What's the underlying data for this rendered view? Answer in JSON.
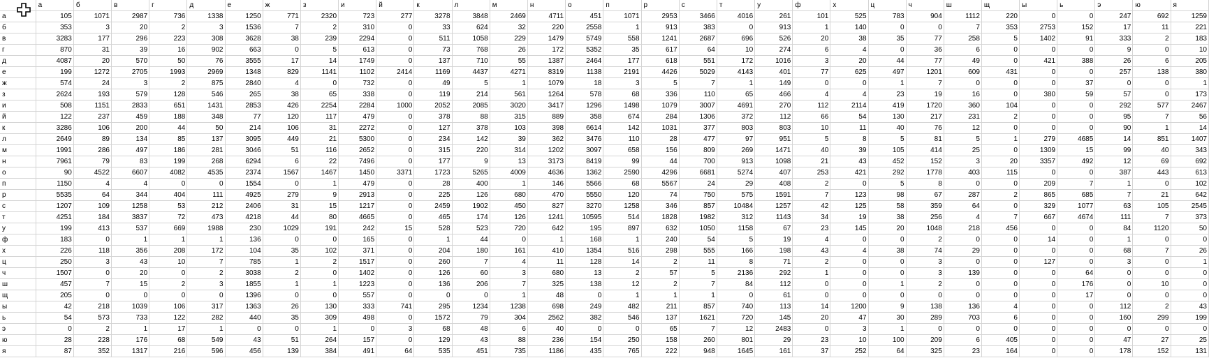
{
  "sheet": {
    "columns": [
      "а",
      "б",
      "в",
      "г",
      "д",
      "е",
      "ж",
      "з",
      "и",
      "й",
      "к",
      "л",
      "м",
      "н",
      "о",
      "п",
      "р",
      "с",
      "т",
      "у",
      "ф",
      "х",
      "ц",
      "ч",
      "ш",
      "щ",
      "ы",
      "ь",
      "э",
      "ю",
      "я"
    ],
    "rows": [
      {
        "label": "а",
        "values": [
          105,
          1071,
          2987,
          736,
          1338,
          1250,
          771,
          2320,
          723,
          277,
          3278,
          3848,
          2469,
          4711,
          451,
          1071,
          2953,
          3466,
          4016,
          261,
          101,
          525,
          783,
          904,
          1112,
          220,
          0,
          0,
          247,
          692,
          1259
        ]
      },
      {
        "label": "б",
        "values": [
          353,
          3,
          20,
          2,
          3,
          1536,
          7,
          2,
          310,
          0,
          33,
          624,
          32,
          220,
          2558,
          1,
          913,
          383,
          0,
          913,
          1,
          140,
          0,
          0,
          7,
          353,
          2753,
          152,
          17,
          11,
          221
        ]
      },
      {
        "label": "в",
        "values": [
          3283,
          177,
          296,
          223,
          308,
          3628,
          38,
          239,
          2294,
          0,
          511,
          1058,
          229,
          1479,
          5749,
          558,
          1241,
          2687,
          696,
          526,
          20,
          38,
          35,
          77,
          258,
          5,
          1402,
          91,
          333,
          2,
          183
        ]
      },
      {
        "label": "г",
        "values": [
          870,
          31,
          39,
          16,
          902,
          663,
          0,
          5,
          613,
          0,
          73,
          768,
          26,
          172,
          5352,
          35,
          617,
          64,
          10,
          274,
          6,
          4,
          0,
          36,
          6,
          0,
          0,
          0,
          9,
          0,
          10
        ]
      },
      {
        "label": "д",
        "values": [
          4087,
          20,
          570,
          50,
          76,
          3555,
          17,
          14,
          1749,
          0,
          137,
          710,
          55,
          1387,
          2464,
          177,
          618,
          551,
          172,
          1016,
          3,
          20,
          44,
          77,
          49,
          0,
          421,
          388,
          26,
          6,
          205
        ]
      },
      {
        "label": "е",
        "values": [
          199,
          1272,
          2705,
          1993,
          2969,
          1348,
          829,
          1141,
          1102,
          2414,
          1169,
          4437,
          4271,
          8319,
          1138,
          2191,
          4426,
          5029,
          4143,
          401,
          77,
          625,
          497,
          1201,
          609,
          431,
          0,
          0,
          257,
          138,
          380
        ]
      },
      {
        "label": "ж",
        "values": [
          574,
          24,
          3,
          2,
          875,
          2840,
          4,
          0,
          732,
          0,
          49,
          5,
          1,
          1079,
          18,
          3,
          5,
          7,
          1,
          149,
          0,
          0,
          1,
          7,
          0,
          0,
          0,
          37,
          0,
          0,
          1
        ]
      },
      {
        "label": "з",
        "values": [
          2624,
          193,
          579,
          128,
          546,
          265,
          38,
          65,
          338,
          0,
          119,
          214,
          561,
          1264,
          578,
          68,
          336,
          110,
          65,
          466,
          4,
          4,
          23,
          19,
          16,
          0,
          380,
          59,
          57,
          0,
          173
        ]
      },
      {
        "label": "и",
        "values": [
          508,
          1151,
          2833,
          651,
          1431,
          2853,
          426,
          2254,
          2284,
          1000,
          2052,
          2085,
          3020,
          3417,
          1296,
          1498,
          1079,
          3007,
          4691,
          270,
          112,
          2114,
          419,
          1720,
          360,
          104,
          0,
          0,
          292,
          577,
          2467
        ]
      },
      {
        "label": "й",
        "values": [
          122,
          237,
          459,
          188,
          348,
          77,
          120,
          117,
          479,
          0,
          378,
          88,
          315,
          889,
          358,
          674,
          284,
          1306,
          372,
          112,
          66,
          54,
          130,
          217,
          231,
          2,
          0,
          0,
          95,
          7,
          56
        ]
      },
      {
        "label": "к",
        "values": [
          3286,
          106,
          200,
          44,
          50,
          214,
          106,
          31,
          2272,
          0,
          127,
          378,
          103,
          398,
          6614,
          142,
          1031,
          377,
          803,
          803,
          10,
          11,
          40,
          76,
          12,
          0,
          0,
          0,
          90,
          1,
          14
        ]
      },
      {
        "label": "л",
        "values": [
          2649,
          89,
          134,
          85,
          137,
          3095,
          449,
          21,
          5300,
          0,
          234,
          142,
          39,
          362,
          3476,
          110,
          28,
          477,
          97,
          951,
          5,
          8,
          5,
          81,
          5,
          1,
          279,
          4685,
          14,
          851,
          1407
        ]
      },
      {
        "label": "м",
        "values": [
          1991,
          286,
          497,
          186,
          281,
          3046,
          51,
          116,
          2652,
          0,
          315,
          220,
          314,
          1202,
          3097,
          658,
          156,
          809,
          269,
          1471,
          40,
          39,
          105,
          414,
          25,
          0,
          1309,
          15,
          99,
          40,
          343
        ]
      },
      {
        "label": "н",
        "values": [
          7961,
          79,
          83,
          199,
          268,
          6294,
          6,
          22,
          7496,
          0,
          177,
          9,
          13,
          3173,
          8419,
          99,
          44,
          700,
          913,
          1098,
          21,
          43,
          452,
          152,
          3,
          20,
          3357,
          492,
          12,
          69,
          692
        ]
      },
      {
        "label": "о",
        "values": [
          90,
          4522,
          6607,
          4082,
          4535,
          2374,
          1567,
          1467,
          1450,
          3371,
          1723,
          5265,
          4009,
          4636,
          1362,
          2590,
          4296,
          6681,
          5274,
          407,
          253,
          421,
          292,
          1778,
          403,
          115,
          0,
          0,
          387,
          443,
          613
        ]
      },
      {
        "label": "п",
        "values": [
          1150,
          4,
          4,
          0,
          0,
          1554,
          0,
          1,
          479,
          0,
          28,
          400,
          1,
          146,
          5566,
          68,
          5567,
          24,
          29,
          408,
          2,
          0,
          5,
          8,
          0,
          0,
          209,
          7,
          1,
          0,
          102
        ]
      },
      {
        "label": "р",
        "values": [
          5535,
          64,
          344,
          404,
          111,
          4925,
          279,
          9,
          2913,
          0,
          225,
          126,
          680,
          470,
          5550,
          120,
          74,
          750,
          575,
          1591,
          7,
          123,
          98,
          67,
          287,
          2,
          865,
          685,
          7,
          21,
          642
        ]
      },
      {
        "label": "с",
        "values": [
          1207,
          109,
          1258,
          53,
          212,
          2406,
          31,
          15,
          1217,
          0,
          2459,
          1902,
          450,
          827,
          3270,
          1258,
          346,
          857,
          10484,
          1257,
          42,
          125,
          58,
          359,
          64,
          0,
          329,
          1077,
          63,
          105,
          2545
        ]
      },
      {
        "label": "т",
        "values": [
          4251,
          184,
          3837,
          72,
          473,
          4218,
          44,
          80,
          4665,
          0,
          465,
          174,
          126,
          1241,
          10595,
          514,
          1828,
          1982,
          312,
          1143,
          34,
          19,
          38,
          256,
          4,
          7,
          667,
          4674,
          111,
          7,
          373
        ]
      },
      {
        "label": "у",
        "values": [
          199,
          413,
          537,
          669,
          1988,
          230,
          1029,
          191,
          242,
          15,
          528,
          523,
          720,
          642,
          195,
          897,
          632,
          1050,
          1158,
          67,
          23,
          145,
          20,
          1048,
          218,
          456,
          0,
          0,
          84,
          1120,
          50
        ]
      },
      {
        "label": "ф",
        "values": [
          183,
          0,
          1,
          1,
          1,
          136,
          0,
          0,
          165,
          0,
          1,
          44,
          0,
          1,
          168,
          1,
          240,
          54,
          5,
          19,
          4,
          0,
          0,
          2,
          0,
          0,
          14,
          0,
          1,
          0,
          0
        ]
      },
      {
        "label": "х",
        "values": [
          226,
          118,
          356,
          208,
          172,
          104,
          35,
          102,
          371,
          0,
          204,
          180,
          161,
          410,
          1354,
          516,
          298,
          555,
          166,
          198,
          43,
          4,
          38,
          74,
          29,
          0,
          0,
          0,
          68,
          7,
          26
        ]
      },
      {
        "label": "ц",
        "values": [
          250,
          3,
          43,
          10,
          7,
          785,
          1,
          2,
          1517,
          0,
          260,
          7,
          4,
          11,
          128,
          14,
          2,
          11,
          8,
          71,
          2,
          0,
          0,
          3,
          0,
          0,
          127,
          0,
          3,
          0,
          1
        ]
      },
      {
        "label": "ч",
        "values": [
          1507,
          0,
          20,
          0,
          2,
          3038,
          2,
          0,
          1402,
          0,
          126,
          60,
          3,
          680,
          13,
          2,
          57,
          5,
          2136,
          292,
          1,
          0,
          0,
          3,
          139,
          0,
          0,
          64,
          0,
          0,
          0
        ]
      },
      {
        "label": "ш",
        "values": [
          457,
          7,
          15,
          2,
          3,
          1855,
          1,
          1,
          1223,
          0,
          136,
          206,
          7,
          325,
          138,
          12,
          2,
          7,
          84,
          112,
          0,
          0,
          1,
          2,
          0,
          0,
          0,
          176,
          0,
          10,
          0
        ]
      },
      {
        "label": "щ",
        "values": [
          205,
          0,
          0,
          0,
          0,
          1396,
          0,
          0,
          557,
          0,
          0,
          0,
          1,
          48,
          0,
          1,
          1,
          1,
          0,
          61,
          0,
          0,
          0,
          0,
          0,
          0,
          0,
          17,
          0,
          0,
          0
        ]
      },
      {
        "label": "ы",
        "values": [
          42,
          218,
          1039,
          106,
          317,
          1363,
          26,
          130,
          333,
          741,
          295,
          1234,
          1238,
          698,
          249,
          482,
          211,
          857,
          740,
          113,
          14,
          1200,
          9,
          138,
          136,
          4,
          0,
          0,
          112,
          2,
          43
        ]
      },
      {
        "label": "ь",
        "values": [
          54,
          573,
          733,
          122,
          282,
          440,
          35,
          309,
          498,
          0,
          1572,
          79,
          304,
          2562,
          382,
          546,
          137,
          1621,
          720,
          145,
          20,
          47,
          30,
          289,
          703,
          6,
          0,
          0,
          160,
          299,
          199
        ]
      },
      {
        "label": "э",
        "values": [
          0,
          2,
          1,
          17,
          1,
          0,
          0,
          1,
          0,
          3,
          68,
          48,
          6,
          40,
          0,
          0,
          65,
          7,
          12,
          2483,
          0,
          3,
          1,
          0,
          0,
          0,
          0,
          0,
          0,
          0,
          0
        ]
      },
      {
        "label": "ю",
        "values": [
          28,
          228,
          176,
          68,
          549,
          43,
          51,
          264,
          157,
          0,
          129,
          43,
          88,
          236,
          154,
          250,
          158,
          260,
          801,
          29,
          23,
          10,
          100,
          209,
          6,
          405,
          0,
          0,
          47,
          27,
          25
        ]
      },
      {
        "label": "я",
        "values": [
          87,
          352,
          1317,
          216,
          596,
          456,
          139,
          384,
          491,
          64,
          535,
          451,
          735,
          1186,
          435,
          765,
          222,
          948,
          1645,
          161,
          37,
          252,
          64,
          325,
          23,
          164,
          0,
          0,
          178,
          152,
          131
        ]
      }
    ]
  }
}
